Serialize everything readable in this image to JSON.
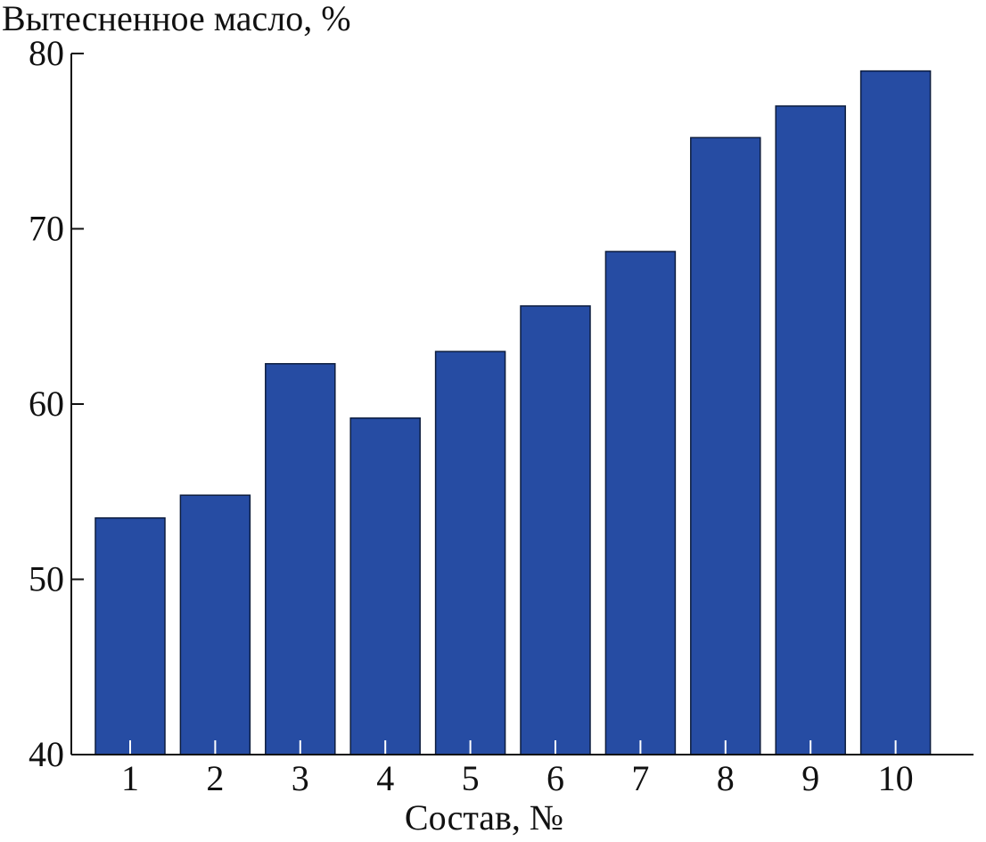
{
  "chart_data": {
    "type": "bar",
    "title": "",
    "ylabel": "Вытесненное масло, %",
    "xlabel": "Состав, №",
    "categories": [
      "1",
      "2",
      "3",
      "4",
      "5",
      "6",
      "7",
      "8",
      "9",
      "10"
    ],
    "values": [
      53.5,
      54.8,
      62.3,
      59.2,
      63.0,
      65.6,
      68.7,
      75.2,
      77.0,
      79.0
    ],
    "ylim": [
      40,
      80
    ],
    "yticks": [
      "40",
      "50",
      "60",
      "70",
      "80"
    ],
    "grid": false,
    "bar_color": "#264ca3"
  }
}
